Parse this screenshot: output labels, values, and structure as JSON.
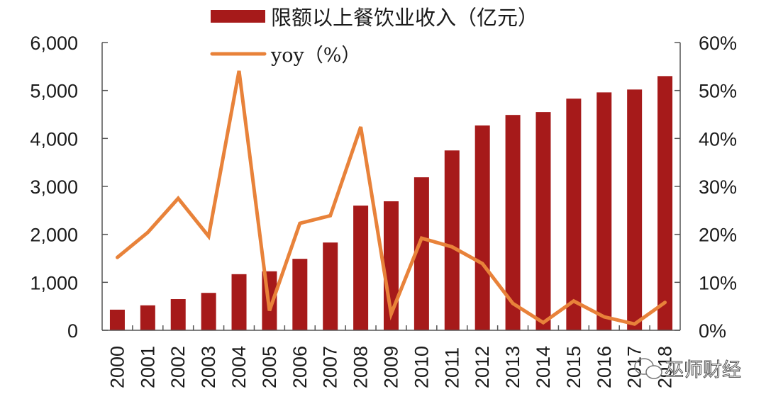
{
  "chart_data": {
    "type": "bar",
    "title": "",
    "xlabel": "",
    "ylabel": "",
    "categories": [
      "2000",
      "2001",
      "2002",
      "2003",
      "2004",
      "2005",
      "2006",
      "2007",
      "2008",
      "2009",
      "2010",
      "2011",
      "2012",
      "2013",
      "2014",
      "2015",
      "2016",
      "2017",
      "2018"
    ],
    "series": [
      {
        "name": "限额以上餐饮业收入（亿元）",
        "type": "bar",
        "axis": "left",
        "color": "#a61a1a",
        "values": [
          430,
          520,
          650,
          780,
          1170,
          1230,
          1490,
          1830,
          2600,
          2690,
          3190,
          3750,
          4270,
          4490,
          4550,
          4830,
          4960,
          5020,
          5300
        ]
      },
      {
        "name": "yoy（%）",
        "type": "line",
        "axis": "right",
        "color": "#e8823a",
        "values": [
          15.2,
          20.4,
          27.5,
          19.6,
          54.1,
          4.1,
          22.3,
          23.9,
          42.4,
          3.4,
          19.2,
          17.4,
          13.9,
          5.6,
          1.6,
          6.1,
          2.8,
          1.3,
          5.8
        ]
      }
    ],
    "ylim_left": [
      0,
      6000
    ],
    "ylim_right": [
      0,
      60
    ],
    "left_ticks": [
      "0",
      "1,000",
      "2,000",
      "3,000",
      "4,000",
      "5,000",
      "6,000"
    ],
    "right_ticks": [
      "0%",
      "10%",
      "20%",
      "30%",
      "40%",
      "50%",
      "60%"
    ],
    "grid": false,
    "legend_position": "top-center"
  },
  "legend": {
    "bar_label": "限额以上餐饮业收入（亿元）",
    "line_label": "yoy（%）"
  },
  "watermark": {
    "text": "巫师财经",
    "icon": "wechat-icon"
  }
}
